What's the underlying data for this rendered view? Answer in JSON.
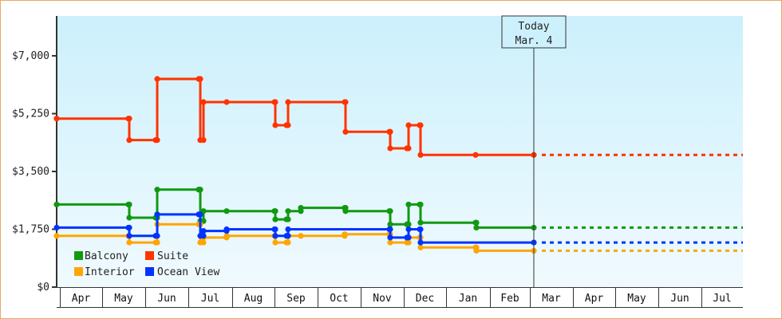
{
  "chart_data": {
    "type": "line",
    "title": "",
    "xlabel": "",
    "ylabel": "",
    "ylim": [
      0,
      8200
    ],
    "y_ticks": [
      "$0",
      "$1,750",
      "$3,500",
      "$5,250",
      "$7,000"
    ],
    "y_tick_values": [
      0,
      1750,
      3500,
      5250,
      7000
    ],
    "x_ticks": [
      "Apr",
      "May",
      "Jun",
      "Jul",
      "Aug",
      "Sep",
      "Oct",
      "Nov",
      "Dec",
      "Jan",
      "Feb",
      "Mar",
      "Apr",
      "May",
      "Jun",
      "Jul"
    ],
    "grid": false,
    "legend_position": "bottom-left inside",
    "step": true,
    "annotation": {
      "line1": "Today",
      "line2": "Mar. 4"
    },
    "series": [
      {
        "name": "Balcony",
        "color": "#119911",
        "points": [
          [
            "Apr 1",
            2500
          ],
          [
            "May 17",
            2500
          ],
          [
            "May 18",
            2100
          ],
          [
            "Jun 8",
            2100
          ],
          [
            "Jun 9",
            2950
          ],
          [
            "Jul 5",
            2950
          ],
          [
            "Jul 6",
            2000
          ],
          [
            "Jul 8",
            2300
          ],
          [
            "Jul 25",
            2300
          ],
          [
            "Aug 25",
            2300
          ],
          [
            "Aug 26",
            2050
          ],
          [
            "Sep 2",
            2050
          ],
          [
            "Sep 3",
            2300
          ],
          [
            "Sep 9",
            2400
          ],
          [
            "Oct 6",
            2400
          ],
          [
            "Oct 7",
            2300
          ],
          [
            "Nov 6",
            2300
          ],
          [
            "Nov 7",
            1900
          ],
          [
            "Nov 17",
            1900
          ],
          [
            "Nov 18",
            2500
          ],
          [
            "Nov 26",
            2500
          ],
          [
            "Nov 27",
            1950
          ],
          [
            "Jan 7",
            1950
          ],
          [
            "Jan 8",
            1800
          ],
          [
            "Mar 4",
            1800
          ]
        ]
      },
      {
        "name": "Suite",
        "color": "#ff3300",
        "points": [
          [
            "Apr 1",
            5100
          ],
          [
            "May 17",
            5100
          ],
          [
            "May 18",
            4450
          ],
          [
            "Jun 8",
            4450
          ],
          [
            "Jun 9",
            6300
          ],
          [
            "Jul 5",
            6300
          ],
          [
            "Jul 6",
            4450
          ],
          [
            "Jul 8",
            5600
          ],
          [
            "Jul 25",
            5600
          ],
          [
            "Aug 25",
            5600
          ],
          [
            "Aug 26",
            4900
          ],
          [
            "Sep 2",
            4900
          ],
          [
            "Sep 3",
            5600
          ],
          [
            "Oct 6",
            5600
          ],
          [
            "Oct 7",
            4700
          ],
          [
            "Nov 6",
            4700
          ],
          [
            "Nov 7",
            4200
          ],
          [
            "Nov 17",
            4200
          ],
          [
            "Nov 18",
            4900
          ],
          [
            "Nov 26",
            4900
          ],
          [
            "Nov 27",
            4000
          ],
          [
            "Jan 7",
            4000
          ],
          [
            "Mar 4",
            4000
          ]
        ]
      },
      {
        "name": "Interior",
        "color": "#ffa500",
        "points": [
          [
            "Apr 1",
            1550
          ],
          [
            "May 17",
            1550
          ],
          [
            "May 18",
            1350
          ],
          [
            "Jun 8",
            1350
          ],
          [
            "Jun 9",
            1900
          ],
          [
            "Jul 5",
            1900
          ],
          [
            "Jul 6",
            1350
          ],
          [
            "Jul 8",
            1500
          ],
          [
            "Jul 25",
            1550
          ],
          [
            "Aug 25",
            1550
          ],
          [
            "Aug 26",
            1350
          ],
          [
            "Sep 2",
            1350
          ],
          [
            "Sep 3",
            1550
          ],
          [
            "Sep 9",
            1550
          ],
          [
            "Oct 6",
            1600
          ],
          [
            "Nov 6",
            1600
          ],
          [
            "Nov 7",
            1350
          ],
          [
            "Nov 17",
            1350
          ],
          [
            "Nov 18",
            1500
          ],
          [
            "Nov 26",
            1500
          ],
          [
            "Nov 27",
            1200
          ],
          [
            "Jan 7",
            1200
          ],
          [
            "Jan 8",
            1100
          ],
          [
            "Mar 4",
            1100
          ]
        ]
      },
      {
        "name": "Ocean View",
        "color": "#0033ff",
        "points": [
          [
            "Apr 1",
            1800
          ],
          [
            "May 17",
            1800
          ],
          [
            "May 18",
            1550
          ],
          [
            "Jun 8",
            1550
          ],
          [
            "Jun 9",
            2200
          ],
          [
            "Jul 5",
            2200
          ],
          [
            "Jul 6",
            1550
          ],
          [
            "Jul 8",
            1700
          ],
          [
            "Jul 25",
            1750
          ],
          [
            "Aug 25",
            1750
          ],
          [
            "Aug 26",
            1550
          ],
          [
            "Sep 2",
            1550
          ],
          [
            "Sep 3",
            1750
          ],
          [
            "Nov 6",
            1750
          ],
          [
            "Nov 7",
            1500
          ],
          [
            "Nov 17",
            1500
          ],
          [
            "Nov 18",
            1750
          ],
          [
            "Nov 26",
            1750
          ],
          [
            "Nov 27",
            1350
          ],
          [
            "Mar 4",
            1350
          ]
        ]
      }
    ]
  },
  "legend": [
    {
      "label": "Balcony",
      "color": "#119911"
    },
    {
      "label": "Suite",
      "color": "#ff3300"
    },
    {
      "label": "Interior",
      "color": "#ffa500"
    },
    {
      "label": "Ocean View",
      "color": "#0033ff"
    }
  ]
}
